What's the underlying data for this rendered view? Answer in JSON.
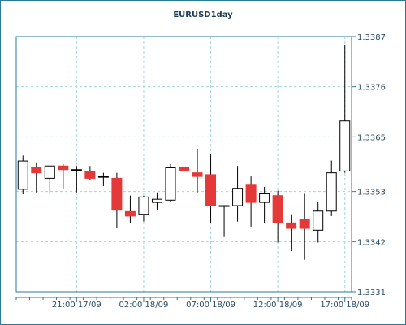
{
  "colors": {
    "border": "#2a7a9a",
    "grid": "#9fd6dd",
    "axis": "#2a7a9a",
    "up_fill": "#ffffff",
    "down_fill": "#e53838",
    "candle_outline": "#000000"
  },
  "chart_data": {
    "type": "candlestick",
    "title": "EURUSD1day",
    "ylim": [
      1.3331,
      1.3387
    ],
    "y_ticks": [
      "1.3387",
      "1.3376",
      "1.3365",
      "1.3353",
      "1.3342",
      "1.3331"
    ],
    "y_tick_values": [
      1.3387,
      1.3376,
      1.3365,
      1.3353,
      1.3342,
      1.3331
    ],
    "x_ticks": [
      {
        "label": "21:00 17/09",
        "bar_index": 4.5
      },
      {
        "label": "02:00 18/09",
        "bar_index": 9.5
      },
      {
        "label": "07:00 18/09",
        "bar_index": 14.5
      },
      {
        "label": "12:00 18/09",
        "bar_index": 19.5
      },
      {
        "label": "17:00 18/09",
        "bar_index": 24.5
      }
    ],
    "grid": true,
    "candles": [
      {
        "o": 1.33535,
        "h": 1.33609,
        "l": 1.33524,
        "c": 1.33597
      },
      {
        "o": 1.33582,
        "h": 1.33594,
        "l": 1.33528,
        "c": 1.33571
      },
      {
        "o": 1.33559,
        "h": 1.33586,
        "l": 1.33528,
        "c": 1.33586
      },
      {
        "o": 1.33586,
        "h": 1.3359,
        "l": 1.33535,
        "c": 1.33578
      },
      {
        "o": 1.33578,
        "h": 1.33586,
        "l": 1.33528,
        "c": 1.33578
      },
      {
        "o": 1.33574,
        "h": 1.33586,
        "l": 1.33555,
        "c": 1.33559
      },
      {
        "o": 1.33563,
        "h": 1.33571,
        "l": 1.33542,
        "c": 1.33563
      },
      {
        "o": 1.33559,
        "h": 1.33571,
        "l": 1.33449,
        "c": 1.33489
      },
      {
        "o": 1.33486,
        "h": 1.33521,
        "l": 1.33461,
        "c": 1.33476
      },
      {
        "o": 1.3348,
        "h": 1.33521,
        "l": 1.33464,
        "c": 1.33518
      },
      {
        "o": 1.33506,
        "h": 1.33528,
        "l": 1.3349,
        "c": 1.33513
      },
      {
        "o": 1.33511,
        "h": 1.3359,
        "l": 1.33506,
        "c": 1.33582
      },
      {
        "o": 1.33582,
        "h": 1.33643,
        "l": 1.33559,
        "c": 1.33575
      },
      {
        "o": 1.33571,
        "h": 1.33624,
        "l": 1.33528,
        "c": 1.33563
      },
      {
        "o": 1.33567,
        "h": 1.33613,
        "l": 1.33461,
        "c": 1.33499
      },
      {
        "o": 1.33499,
        "h": 1.33499,
        "l": 1.3343,
        "c": 1.33499
      },
      {
        "o": 1.33499,
        "h": 1.33586,
        "l": 1.33464,
        "c": 1.33537
      },
      {
        "o": 1.33544,
        "h": 1.33563,
        "l": 1.33453,
        "c": 1.33506
      },
      {
        "o": 1.33506,
        "h": 1.3354,
        "l": 1.33461,
        "c": 1.33525
      },
      {
        "o": 1.33521,
        "h": 1.33532,
        "l": 1.33418,
        "c": 1.33461
      },
      {
        "o": 1.33461,
        "h": 1.3348,
        "l": 1.33399,
        "c": 1.33449
      },
      {
        "o": 1.33468,
        "h": 1.33525,
        "l": 1.3338,
        "c": 1.33449
      },
      {
        "o": 1.33445,
        "h": 1.33506,
        "l": 1.33418,
        "c": 1.33487
      },
      {
        "o": 1.33487,
        "h": 1.33598,
        "l": 1.33476,
        "c": 1.33571
      },
      {
        "o": 1.33575,
        "h": 1.33851,
        "l": 1.33571,
        "c": 1.33685
      }
    ]
  }
}
